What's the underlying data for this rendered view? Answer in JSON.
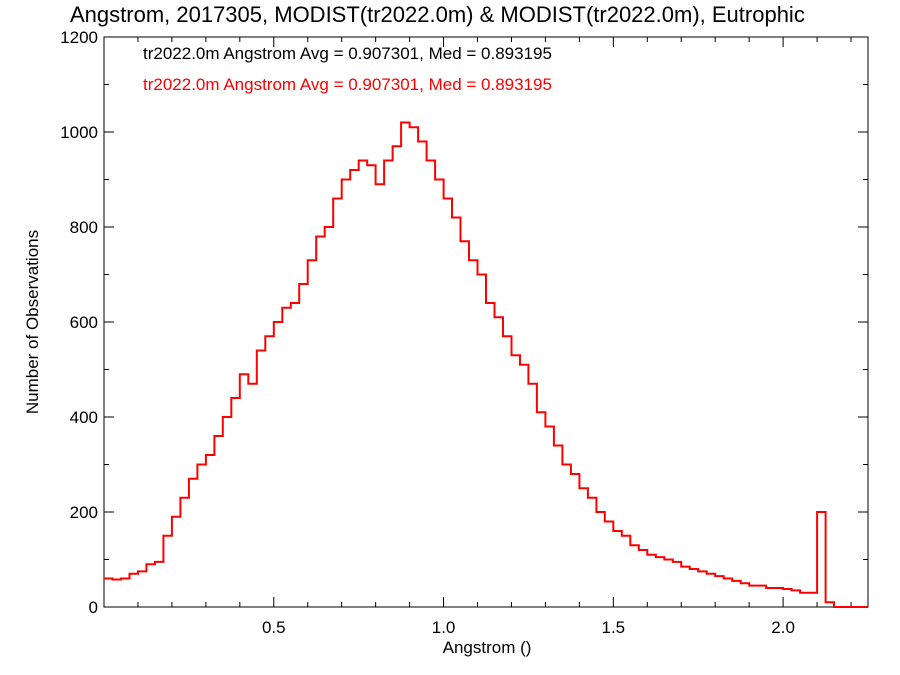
{
  "chart_data": {
    "type": "line",
    "title": "Angstrom, 2017305, MODIST(tr2022.0m) & MODIST(tr2022.0m), Eutrophic",
    "xlabel": "Angstrom ()",
    "ylabel": "Number of Observations",
    "xlim": [
      0.0,
      2.25
    ],
    "ylim": [
      0,
      1200
    ],
    "xticks": [
      0.5,
      1.0,
      1.5,
      2.0
    ],
    "xtick_labels": [
      "0.5",
      "1.0",
      "1.5",
      "2.0"
    ],
    "yticks": [
      0,
      200,
      400,
      600,
      800,
      1000,
      1200
    ],
    "ytick_labels": [
      "0",
      "200",
      "400",
      "600",
      "800",
      "1000",
      "1200"
    ],
    "grid": false,
    "annotations": [
      {
        "text": "tr2022.0m Angstrom Avg = 0.907301, Med = 0.893195",
        "color": "#000000"
      },
      {
        "text": "tr2022.0m Angstrom Avg = 0.907301, Med = 0.893195",
        "color": "#ff0000"
      }
    ],
    "series": [
      {
        "color": "#ff0000",
        "x": [
          0.0,
          0.025,
          0.05,
          0.075,
          0.1,
          0.125,
          0.15,
          0.175,
          0.2,
          0.225,
          0.25,
          0.275,
          0.3,
          0.325,
          0.35,
          0.375,
          0.4,
          0.425,
          0.45,
          0.475,
          0.5,
          0.525,
          0.55,
          0.575,
          0.6,
          0.625,
          0.65,
          0.675,
          0.7,
          0.725,
          0.75,
          0.775,
          0.8,
          0.825,
          0.85,
          0.875,
          0.9,
          0.925,
          0.95,
          0.975,
          1.0,
          1.025,
          1.05,
          1.075,
          1.1,
          1.125,
          1.15,
          1.175,
          1.2,
          1.225,
          1.25,
          1.275,
          1.3,
          1.325,
          1.35,
          1.375,
          1.4,
          1.425,
          1.45,
          1.475,
          1.5,
          1.525,
          1.55,
          1.575,
          1.6,
          1.625,
          1.65,
          1.675,
          1.7,
          1.725,
          1.75,
          1.775,
          1.8,
          1.825,
          1.85,
          1.875,
          1.9,
          1.925,
          1.95,
          1.975,
          2.0,
          2.025,
          2.05,
          2.075,
          2.1,
          2.125,
          2.15,
          2.175,
          2.2,
          2.225,
          2.25
        ],
        "values": [
          60,
          58,
          60,
          70,
          75,
          90,
          95,
          150,
          190,
          230,
          270,
          300,
          320,
          360,
          400,
          440,
          490,
          470,
          540,
          570,
          600,
          630,
          640,
          680,
          730,
          780,
          800,
          860,
          900,
          920,
          940,
          930,
          890,
          940,
          970,
          1020,
          1010,
          980,
          940,
          900,
          860,
          820,
          770,
          730,
          700,
          640,
          610,
          570,
          530,
          510,
          470,
          410,
          380,
          340,
          300,
          280,
          250,
          230,
          200,
          180,
          160,
          150,
          130,
          120,
          110,
          105,
          100,
          95,
          85,
          80,
          75,
          70,
          65,
          60,
          55,
          50,
          45,
          45,
          40,
          40,
          38,
          35,
          30,
          30,
          200,
          10,
          0,
          0,
          0,
          0,
          0
        ]
      }
    ]
  }
}
